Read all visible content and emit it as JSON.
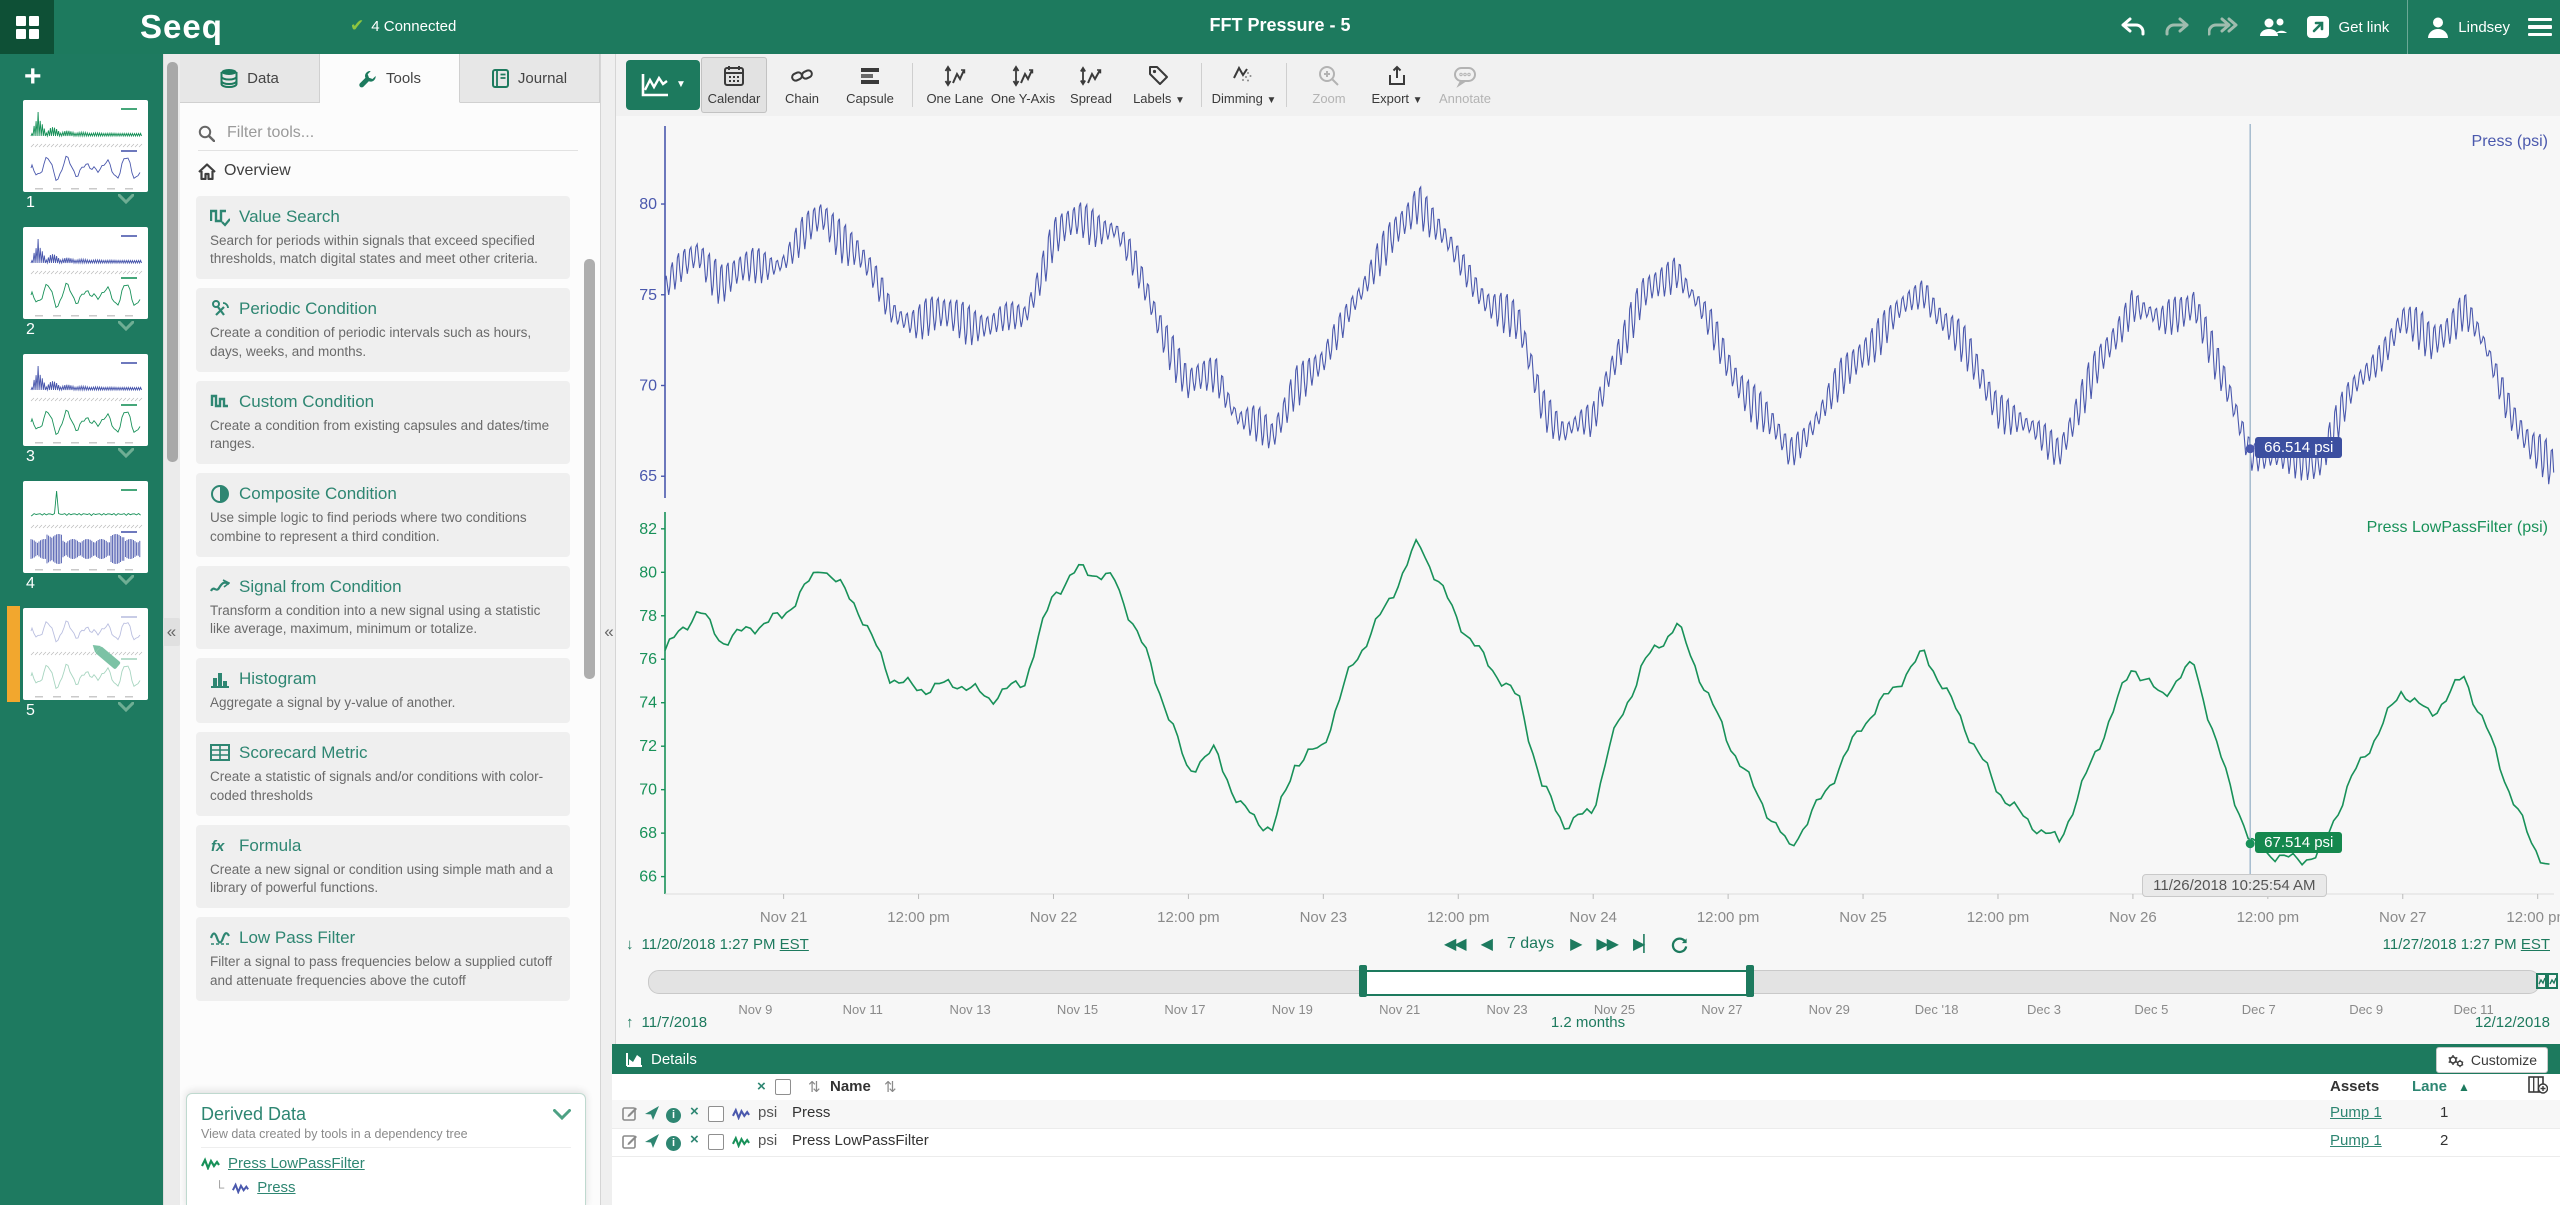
{
  "colors": {
    "topbar": "#1d7a5e",
    "dark_square": "#0e5036",
    "accent": "#2e8672",
    "blue_signal": "#4a58ad",
    "green_signal": "#189159",
    "blue_box": "#3c4fa0",
    "green_box": "#15884e",
    "active_orange": "#f2a72e"
  },
  "header": {
    "logo": "Seeq",
    "connected": "4 Connected",
    "title": "FFT Pressure - 5",
    "get_link": "Get link",
    "user": "Lindsey"
  },
  "worksheets": {
    "items": [
      {
        "label": "1",
        "style": {
          "top": "spikes-green",
          "bottom": "wave-blue"
        }
      },
      {
        "label": "2",
        "style": {
          "top": "spikes-blue",
          "bottom": "wave-green"
        }
      },
      {
        "label": "3",
        "style": {
          "top": "spikes-blue",
          "bottom": "wave-green"
        }
      },
      {
        "label": "4",
        "style": {
          "top": "spike-green",
          "bottom": "band-blue"
        }
      },
      {
        "label": "5",
        "style": {
          "top": "wave-blue-faded",
          "bottom": "wave-green-faded",
          "pencil": true,
          "active": true
        }
      }
    ]
  },
  "tools_panel": {
    "tabs": [
      {
        "label": "Data",
        "icon": "database"
      },
      {
        "label": "Tools",
        "icon": "wrench",
        "active": true
      },
      {
        "label": "Journal",
        "icon": "journal"
      }
    ],
    "filter_placeholder": "Filter tools...",
    "overview_label": "Overview",
    "tools": [
      {
        "icon": "value-search",
        "name": "Value Search",
        "desc": "Search for periods within signals that exceed specified thresholds, match digital states and meet other criteria."
      },
      {
        "icon": "periodic-condition",
        "name": "Periodic Condition",
        "desc": "Create a condition of periodic intervals such as hours, days, weeks, and months."
      },
      {
        "icon": "custom-condition",
        "name": "Custom Condition",
        "desc": "Create a condition from existing capsules and dates/time ranges."
      },
      {
        "icon": "composite-condition",
        "name": "Composite Condition",
        "desc": "Use simple logic to find periods where two conditions combine to represent a third condition."
      },
      {
        "icon": "signal-from-condition",
        "name": "Signal from Condition",
        "desc": "Transform a condition into a new signal using a statistic like average, maximum, minimum or totalize."
      },
      {
        "icon": "histogram",
        "name": "Histogram",
        "desc": "Aggregate a signal by y-value of another."
      },
      {
        "icon": "scorecard-metric",
        "name": "Scorecard Metric",
        "desc": "Create a statistic of signals and/or conditions with color-coded thresholds"
      },
      {
        "icon": "formula",
        "name": "Formula",
        "desc": "Create a new signal or condition using simple math and a library of powerful functions."
      },
      {
        "icon": "low-pass-filter",
        "name": "Low Pass Filter",
        "desc": "Filter a signal to pass frequencies below a supplied cutoff and attenuate frequencies above the cutoff"
      }
    ],
    "derived": {
      "title": "Derived Data",
      "subtitle": "View data created by tools in a dependency tree",
      "items": [
        {
          "label": "Press LowPassFilter",
          "color": "#189159"
        },
        {
          "label": "Press",
          "color": "#4a58ad",
          "child": true
        }
      ]
    }
  },
  "chart_toolbar": {
    "view_button": {
      "icon": "trend"
    },
    "buttons": [
      {
        "label": "Calendar",
        "icon": "calendar",
        "pressed": true
      },
      {
        "label": "Chain",
        "icon": "chain"
      },
      {
        "label": "Capsule",
        "icon": "capsule"
      },
      {
        "label": "One Lane",
        "icon": "one-lane",
        "group": "start"
      },
      {
        "label": "One Y-Axis",
        "icon": "one-y-axis"
      },
      {
        "label": "Spread",
        "icon": "spread"
      },
      {
        "label": "Labels",
        "icon": "labels",
        "caret": true
      },
      {
        "label": "Dimming",
        "icon": "dimming",
        "caret": true,
        "group": "start"
      },
      {
        "label": "Zoom",
        "icon": "zoom",
        "disabled": true,
        "group": "start"
      },
      {
        "label": "Export",
        "icon": "export",
        "caret": true
      },
      {
        "label": "Annotate",
        "icon": "annotate",
        "disabled": true
      }
    ]
  },
  "chart_data": {
    "type": "line",
    "title": "FFT Pressure - 5",
    "x_range_label": {
      "start": "11/20/2018 1:27 PM",
      "start_tz": "EST",
      "end": "11/27/2018 1:27 PM",
      "end_tz": "EST",
      "duration": "7 days"
    },
    "x_ticks": [
      {
        "label": "Nov 21",
        "hours": 10.55
      },
      {
        "label": "12:00 pm",
        "hours": 22.55
      },
      {
        "label": "Nov 22",
        "hours": 34.55
      },
      {
        "label": "12:00 pm",
        "hours": 46.55
      },
      {
        "label": "Nov 23",
        "hours": 58.55
      },
      {
        "label": "12:00 pm",
        "hours": 70.55
      },
      {
        "label": "Nov 24",
        "hours": 82.55
      },
      {
        "label": "12:00 pm",
        "hours": 94.55
      },
      {
        "label": "Nov 25",
        "hours": 106.55
      },
      {
        "label": "12:00 pm",
        "hours": 118.55
      },
      {
        "label": "Nov 26",
        "hours": 130.55
      },
      {
        "label": "12:00 pm",
        "hours": 142.55
      },
      {
        "label": "Nov 27",
        "hours": 154.55
      },
      {
        "label": "12:00 pm",
        "hours": 166.55
      }
    ],
    "x_total_hours": 168,
    "lanes": [
      {
        "name": "Press (psi)",
        "unit": "psi",
        "color": "#4a58ad",
        "yticks": [
          80,
          75,
          70,
          65
        ],
        "ymin": 63.8,
        "ymax": 84.3,
        "noisy": true,
        "noise_amplitude": 1.1,
        "noise_period_hours": 0.55,
        "value_offset": -1.0
      },
      {
        "name": "Press LowPassFilter (psi)",
        "unit": "psi",
        "color": "#189159",
        "yticks": [
          82,
          80,
          78,
          76,
          74,
          72,
          70,
          68,
          66
        ],
        "ymin": 65.2,
        "ymax": 83.05,
        "noisy": false,
        "value_offset": 0
      }
    ],
    "base_series": {
      "t_hours": [
        0,
        3,
        5,
        8,
        10.5,
        14,
        17,
        20,
        22.5,
        26,
        29,
        32,
        34.5,
        37,
        40,
        43,
        46.5,
        49,
        51,
        54,
        56,
        58.5,
        61,
        64,
        67,
        70.5,
        73,
        76,
        78,
        80,
        82.5,
        84,
        87,
        90,
        94.5,
        97,
        100,
        103,
        106.5,
        109,
        112,
        115,
        118.5,
        121,
        124,
        127,
        130.5,
        133,
        136,
        138,
        141,
        144,
        147,
        150,
        154.5,
        157,
        160,
        162,
        164,
        166,
        168
      ],
      "values_psi": [
        76.4,
        78.3,
        76.8,
        77.5,
        78.0,
        80.3,
        78.5,
        75.2,
        74.6,
        74.9,
        74.2,
        75.0,
        79.0,
        80.2,
        79.6,
        76.0,
        70.9,
        71.8,
        69.3,
        68.1,
        71.2,
        72.0,
        75.6,
        78.3,
        81.4,
        77.8,
        75.9,
        74.1,
        70.2,
        68.4,
        69.0,
        72.0,
        75.8,
        77.6,
        72.3,
        69.9,
        67.3,
        69.7,
        73.0,
        74.5,
        76.3,
        73.5,
        70.0,
        68.6,
        67.6,
        71.4,
        75.7,
        74.3,
        75.8,
        72.0,
        67.5,
        66.8,
        66.9,
        70.5,
        74.6,
        73.4,
        75.2,
        72.8,
        70.0,
        67.5,
        66.2
      ]
    },
    "cursor": {
      "t_hours": 140.98,
      "timestamp": "11/26/2018 10:25:54 AM",
      "press_value": "66.514 psi",
      "lowpass_value": "67.514 psi"
    }
  },
  "overview_bar": {
    "start_date": "11/7/2018",
    "end_date": "12/12/2018",
    "duration": "1.2 months",
    "total_days": 35.2,
    "window_start_day": 13.3,
    "window_end_day": 20.5,
    "ticks": [
      {
        "label": "Nov 9",
        "day": 2
      },
      {
        "label": "Nov 11",
        "day": 4
      },
      {
        "label": "Nov 13",
        "day": 6
      },
      {
        "label": "Nov 15",
        "day": 8
      },
      {
        "label": "Nov 17",
        "day": 10
      },
      {
        "label": "Nov 19",
        "day": 12
      },
      {
        "label": "Nov 21",
        "day": 14
      },
      {
        "label": "Nov 23",
        "day": 16
      },
      {
        "label": "Nov 25",
        "day": 18
      },
      {
        "label": "Nov 27",
        "day": 20
      },
      {
        "label": "Nov 29",
        "day": 22
      },
      {
        "label": "Dec '18",
        "day": 24
      },
      {
        "label": "Dec 3",
        "day": 26
      },
      {
        "label": "Dec 5",
        "day": 28
      },
      {
        "label": "Dec 7",
        "day": 30
      },
      {
        "label": "Dec 9",
        "day": 32
      },
      {
        "label": "Dec 11",
        "day": 34
      }
    ]
  },
  "details": {
    "title": "Details",
    "customize_label": "Customize",
    "columns": {
      "name": "Name",
      "assets": "Assets",
      "lane": "Lane"
    },
    "rows": [
      {
        "unit": "psi",
        "name": "Press",
        "asset": "Pump 1",
        "lane": "1",
        "color": "#4a58ad"
      },
      {
        "unit": "psi",
        "name": "Press LowPassFilter",
        "asset": "Pump 1",
        "lane": "2",
        "color": "#189159"
      }
    ]
  }
}
